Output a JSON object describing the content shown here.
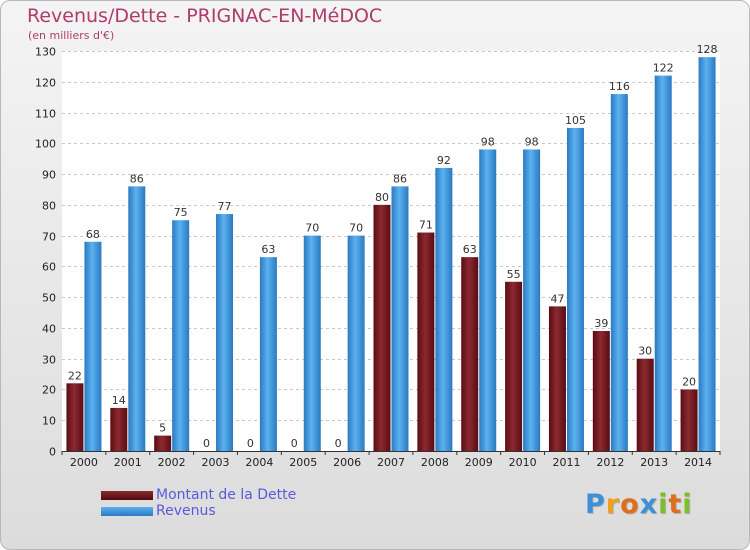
{
  "header": {
    "title": "Revenus/Dette - PRIGNAC-EN-MéDOC",
    "subtitle": "(en milliers d'€)"
  },
  "chart_data": {
    "type": "bar",
    "categories": [
      "2000",
      "2001",
      "2002",
      "2003",
      "2004",
      "2005",
      "2006",
      "2007",
      "2008",
      "2009",
      "2010",
      "2011",
      "2012",
      "2013",
      "2014"
    ],
    "series": [
      {
        "name": "Montant de la Dette",
        "color": "#7a1f24",
        "values": [
          22,
          14,
          5,
          0,
          0,
          0,
          0,
          80,
          71,
          63,
          55,
          47,
          39,
          30,
          20
        ]
      },
      {
        "name": "Revenus",
        "color": "#4a9fe3",
        "values": [
          68,
          86,
          75,
          77,
          63,
          70,
          70,
          86,
          92,
          98,
          98,
          105,
          116,
          122,
          128
        ]
      }
    ],
    "ylim": [
      0,
      130
    ],
    "yticks": [
      0,
      10,
      20,
      30,
      40,
      50,
      60,
      70,
      80,
      90,
      100,
      110,
      120,
      130
    ],
    "grid": true,
    "legend_position": "bottom-left"
  },
  "logo": {
    "text": "Proxiti",
    "letters": [
      {
        "char": "P",
        "color": "#3d8fd6"
      },
      {
        "char": "r",
        "color": "#f0a020"
      },
      {
        "char": "o",
        "color": "#e06c1c"
      },
      {
        "char": "x",
        "color": "#3d8fd6"
      },
      {
        "char": "i",
        "color": "#7cbf2a"
      },
      {
        "char": "t",
        "color": "#e06c1c"
      },
      {
        "char": "i",
        "color": "#7cbf2a"
      }
    ]
  }
}
